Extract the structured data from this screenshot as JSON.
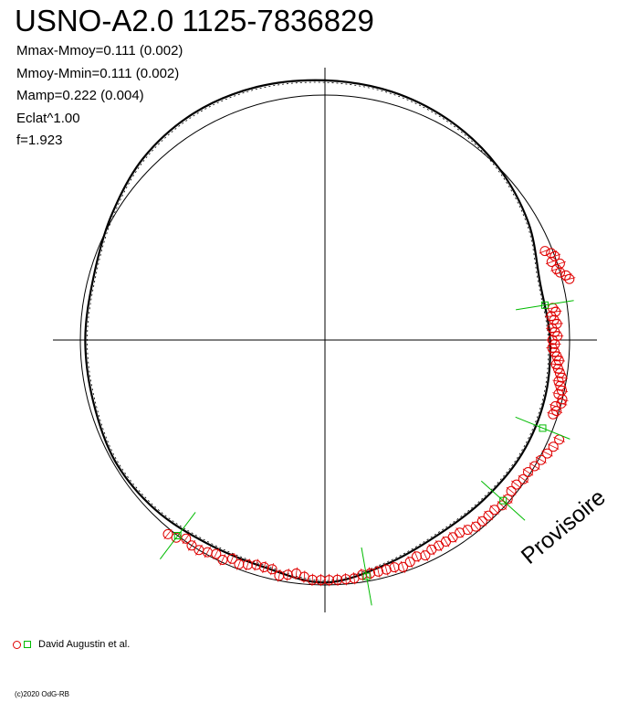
{
  "title": "USNO-A2.0 1125-7836829",
  "stats": [
    "Mmax-Mmoy=0.111 (0.002)",
    "Mmoy-Mmin=0.111 (0.002)",
    "Mamp=0.222 (0.004)",
    "Eclat^1.00",
    "f=1.923"
  ],
  "legend": {
    "label": "David Augustin et al.",
    "circle_color": "#e00000",
    "square_color": "#00bb00"
  },
  "copyright": "(c)2020 OdG-RB",
  "watermark": "Provisoire",
  "chart_data": {
    "type": "scatter",
    "projection": "polar phase diagram",
    "title": "USNO-A2.0 1125-7836829",
    "angle_unit": "degrees, 0 = right (east), counter-clockwise",
    "radius_unit": "relative to reference circle (reference circle radius = 1.0)",
    "reference_circle": {
      "radius": 1.0
    },
    "model_curve": {
      "description": "mean light-curve model (closed curve)",
      "points": [
        {
          "angle": 0,
          "r": 0.92
        },
        {
          "angle": 15,
          "r": 0.91
        },
        {
          "angle": 30,
          "r": 0.96
        },
        {
          "angle": 45,
          "r": 1.0
        },
        {
          "angle": 60,
          "r": 1.03
        },
        {
          "angle": 75,
          "r": 1.05
        },
        {
          "angle": 90,
          "r": 1.06
        },
        {
          "angle": 105,
          "r": 1.07
        },
        {
          "angle": 120,
          "r": 1.07
        },
        {
          "angle": 135,
          "r": 1.05
        },
        {
          "angle": 150,
          "r": 1.01
        },
        {
          "angle": 165,
          "r": 0.98
        },
        {
          "angle": 180,
          "r": 0.98
        },
        {
          "angle": 195,
          "r": 0.98
        },
        {
          "angle": 210,
          "r": 0.99
        },
        {
          "angle": 225,
          "r": 0.98
        },
        {
          "angle": 240,
          "r": 0.96
        },
        {
          "angle": 255,
          "r": 0.96
        },
        {
          "angle": 270,
          "r": 0.99
        },
        {
          "angle": 285,
          "r": 0.95
        },
        {
          "angle": 300,
          "r": 0.92
        },
        {
          "angle": 315,
          "r": 0.92
        },
        {
          "angle": 330,
          "r": 0.93
        },
        {
          "angle": 345,
          "r": 0.93
        },
        {
          "angle": 360,
          "r": 0.92
        }
      ]
    },
    "series": [
      {
        "name": "David Augustin et al.",
        "marker": "circle",
        "color": "#e00000",
        "points": [
          {
            "angle": 22,
            "r": 0.97
          },
          {
            "angle": 21,
            "r": 0.99
          },
          {
            "angle": 20,
            "r": 1.0
          },
          {
            "angle": 19,
            "r": 0.98
          },
          {
            "angle": 18,
            "r": 1.01
          },
          {
            "angle": 17,
            "r": 0.99
          },
          {
            "angle": 16,
            "r": 1.0
          },
          {
            "angle": 15,
            "r": 1.02
          },
          {
            "angle": 14,
            "r": 1.03
          },
          {
            "angle": 8,
            "r": 0.94
          },
          {
            "angle": 7,
            "r": 0.95
          },
          {
            "angle": 6,
            "r": 0.93
          },
          {
            "angle": 5,
            "r": 0.94
          },
          {
            "angle": 4,
            "r": 0.95
          },
          {
            "angle": 3,
            "r": 0.93
          },
          {
            "angle": 2,
            "r": 0.94
          },
          {
            "angle": 1,
            "r": 0.95
          },
          {
            "angle": 0,
            "r": 0.93
          },
          {
            "angle": -1,
            "r": 0.94
          },
          {
            "angle": -2,
            "r": 0.93
          },
          {
            "angle": -3,
            "r": 0.94
          },
          {
            "angle": -4,
            "r": 0.95
          },
          {
            "angle": -5,
            "r": 0.96
          },
          {
            "angle": -6,
            "r": 0.95
          },
          {
            "angle": -7,
            "r": 0.96
          },
          {
            "angle": -8,
            "r": 0.97
          },
          {
            "angle": -9,
            "r": 0.98
          },
          {
            "angle": -10,
            "r": 0.97
          },
          {
            "angle": -11,
            "r": 0.98
          },
          {
            "angle": -12,
            "r": 0.99
          },
          {
            "angle": -13,
            "r": 0.98
          },
          {
            "angle": -14,
            "r": 1.0
          },
          {
            "angle": -15,
            "r": 1.0
          },
          {
            "angle": -16,
            "r": 0.98
          },
          {
            "angle": -17,
            "r": 0.99
          },
          {
            "angle": -18,
            "r": 0.98
          },
          {
            "angle": -23,
            "r": 1.04
          },
          {
            "angle": -25,
            "r": 1.03
          },
          {
            "angle": -27,
            "r": 1.02
          },
          {
            "angle": -29,
            "r": 1.01
          },
          {
            "angle": -31,
            "r": 1.0
          },
          {
            "angle": -33,
            "r": 0.99
          },
          {
            "angle": -35,
            "r": 0.99
          },
          {
            "angle": -37,
            "r": 0.98
          },
          {
            "angle": -39,
            "r": 0.98
          },
          {
            "angle": -41,
            "r": 0.99
          },
          {
            "angle": -43,
            "r": 0.99
          },
          {
            "angle": -45,
            "r": 0.98
          },
          {
            "angle": -47,
            "r": 0.98
          },
          {
            "angle": -49,
            "r": 0.98
          },
          {
            "angle": -51,
            "r": 0.98
          },
          {
            "angle": -53,
            "r": 0.97
          },
          {
            "angle": -55,
            "r": 0.96
          },
          {
            "angle": -57,
            "r": 0.96
          },
          {
            "angle": -59,
            "r": 0.96
          },
          {
            "angle": -61,
            "r": 0.96
          },
          {
            "angle": -63,
            "r": 0.96
          },
          {
            "angle": -65,
            "r": 0.97
          },
          {
            "angle": -67,
            "r": 0.96
          },
          {
            "angle": -69,
            "r": 0.97
          },
          {
            "angle": -71,
            "r": 0.98
          },
          {
            "angle": -73,
            "r": 0.97
          },
          {
            "angle": -75,
            "r": 0.97
          },
          {
            "angle": -77,
            "r": 0.97
          },
          {
            "angle": -79,
            "r": 0.97
          },
          {
            "angle": -81,
            "r": 0.97
          },
          {
            "angle": -83,
            "r": 0.98
          },
          {
            "angle": -85,
            "r": 0.98
          },
          {
            "angle": -87,
            "r": 0.98
          },
          {
            "angle": -89,
            "r": 0.98
          },
          {
            "angle": -91,
            "r": 0.98
          },
          {
            "angle": -93,
            "r": 0.98
          },
          {
            "angle": -95,
            "r": 0.97
          },
          {
            "angle": -97,
            "r": 0.96
          },
          {
            "angle": -99,
            "r": 0.97
          },
          {
            "angle": -101,
            "r": 0.98
          },
          {
            "angle": -103,
            "r": 0.96
          },
          {
            "angle": -105,
            "r": 0.96
          },
          {
            "angle": -107,
            "r": 0.96
          },
          {
            "angle": -109,
            "r": 0.97
          },
          {
            "angle": -111,
            "r": 0.98
          },
          {
            "angle": -113,
            "r": 0.97
          },
          {
            "angle": -115,
            "r": 0.99
          },
          {
            "angle": -117,
            "r": 0.98
          },
          {
            "angle": -119,
            "r": 0.99
          },
          {
            "angle": -121,
            "r": 1.0
          },
          {
            "angle": -123,
            "r": 1.0
          },
          {
            "angle": -125,
            "r": 0.99
          },
          {
            "angle": -127,
            "r": 1.01
          },
          {
            "angle": -129,
            "r": 1.02
          }
        ]
      },
      {
        "name": "David Augustin et al.",
        "marker": "square",
        "color": "#00bb00",
        "points": [
          {
            "angle": 9,
            "r": 0.91
          },
          {
            "angle": -22,
            "r": 0.96
          },
          {
            "angle": -42,
            "r": 0.98
          },
          {
            "angle": -80,
            "r": 0.98
          },
          {
            "angle": -127,
            "r": 1.0
          }
        ]
      }
    ],
    "grid": false,
    "legend_position": "bottom-left"
  }
}
